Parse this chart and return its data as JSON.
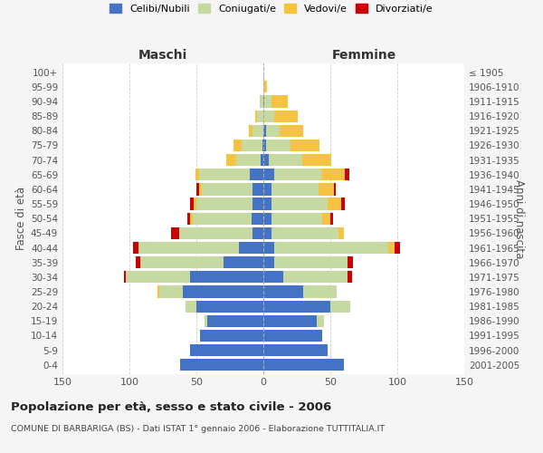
{
  "age_groups": [
    "0-4",
    "5-9",
    "10-14",
    "15-19",
    "20-24",
    "25-29",
    "30-34",
    "35-39",
    "40-44",
    "45-49",
    "50-54",
    "55-59",
    "60-64",
    "65-69",
    "70-74",
    "75-79",
    "80-84",
    "85-89",
    "90-94",
    "95-99",
    "100+"
  ],
  "birth_years": [
    "2001-2005",
    "1996-2000",
    "1991-1995",
    "1986-1990",
    "1981-1985",
    "1976-1980",
    "1971-1975",
    "1966-1970",
    "1961-1965",
    "1956-1960",
    "1951-1955",
    "1946-1950",
    "1941-1945",
    "1936-1940",
    "1931-1935",
    "1926-1930",
    "1921-1925",
    "1916-1920",
    "1911-1915",
    "1906-1910",
    "≤ 1905"
  ],
  "male": {
    "celibi": [
      62,
      55,
      47,
      42,
      50,
      60,
      55,
      30,
      18,
      8,
      9,
      8,
      8,
      10,
      2,
      1,
      0,
      0,
      0,
      0,
      0
    ],
    "coniugati": [
      0,
      0,
      0,
      2,
      8,
      18,
      48,
      62,
      75,
      55,
      44,
      42,
      38,
      38,
      18,
      15,
      8,
      5,
      3,
      0,
      0
    ],
    "vedovi": [
      0,
      0,
      0,
      0,
      0,
      1,
      0,
      0,
      0,
      0,
      2,
      2,
      2,
      3,
      8,
      6,
      3,
      1,
      0,
      0,
      0
    ],
    "divorziati": [
      0,
      0,
      0,
      0,
      0,
      0,
      1,
      3,
      4,
      6,
      2,
      3,
      2,
      0,
      0,
      0,
      0,
      0,
      0,
      0,
      0
    ]
  },
  "female": {
    "nubili": [
      60,
      48,
      44,
      40,
      50,
      30,
      15,
      8,
      8,
      6,
      6,
      6,
      6,
      8,
      4,
      2,
      2,
      0,
      1,
      0,
      0
    ],
    "coniugate": [
      0,
      0,
      0,
      5,
      15,
      25,
      48,
      55,
      85,
      50,
      38,
      42,
      35,
      35,
      25,
      18,
      10,
      8,
      5,
      1,
      0
    ],
    "vedove": [
      0,
      0,
      0,
      0,
      0,
      0,
      0,
      0,
      5,
      4,
      6,
      10,
      12,
      18,
      22,
      22,
      18,
      18,
      12,
      2,
      0
    ],
    "divorziate": [
      0,
      0,
      0,
      0,
      0,
      0,
      3,
      4,
      4,
      0,
      2,
      3,
      1,
      3,
      0,
      0,
      0,
      0,
      0,
      0,
      0
    ]
  },
  "colors": {
    "celibi_nubili": "#4472C4",
    "coniugati": "#C5D9A0",
    "vedovi": "#F5C242",
    "divorziati": "#CC0000"
  },
  "title": "Popolazione per età, sesso e stato civile - 2006",
  "subtitle": "COMUNE DI BARBARIGA (BS) - Dati ISTAT 1° gennaio 2006 - Elaborazione TUTTITALIA.IT",
  "ylabel_left": "Fasce di età",
  "ylabel_right": "Anni di nascita",
  "xlabel_left": "Maschi",
  "xlabel_right": "Femmine",
  "xlim": 150,
  "bg_color": "#f5f5f5",
  "plot_bg": "#ffffff",
  "grid_color": "#cccccc"
}
